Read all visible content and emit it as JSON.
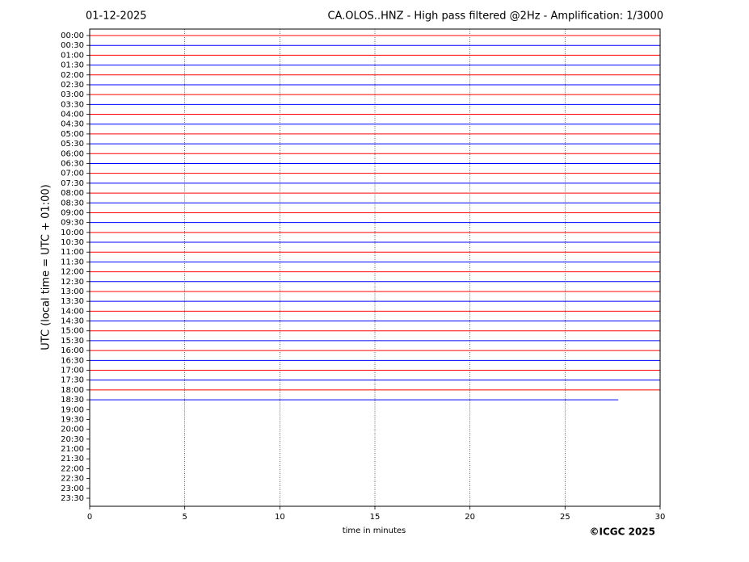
{
  "chart_data": {
    "type": "line",
    "subtitle": "01-12-2025",
    "title": "CA.OLOS..HNZ - High pass filtered @2Hz - Amplification: 1/3000",
    "x_label": "time in minutes",
    "y_label": "UTC (local time = UTC + 01:00)",
    "credit": "©ICGC 2025",
    "categories": [
      "00:00",
      "00:30",
      "01:00",
      "01:30",
      "02:00",
      "02:30",
      "03:00",
      "03:30",
      "04:00",
      "04:30",
      "05:00",
      "05:30",
      "06:00",
      "06:30",
      "07:00",
      "07:30",
      "08:00",
      "08:30",
      "09:00",
      "09:30",
      "10:00",
      "10:30",
      "11:00",
      "11:30",
      "12:00",
      "12:30",
      "13:00",
      "13:30",
      "14:00",
      "14:30",
      "15:00",
      "15:30",
      "16:00",
      "16:30",
      "17:00",
      "17:30",
      "18:00",
      "18:30",
      "19:00",
      "19:30",
      "20:00",
      "20:30",
      "21:00",
      "21:30",
      "22:00",
      "22:30",
      "23:00",
      "23:30"
    ],
    "xlim": [
      0,
      30
    ],
    "xticks": [
      0,
      5,
      10,
      15,
      20,
      25,
      30
    ],
    "grid": true,
    "traces": [
      {
        "color": "#ff0000",
        "start": 0,
        "end": 30
      },
      {
        "color": "#0000ff",
        "start": 0,
        "end": 30
      },
      {
        "color": "#ff0000",
        "start": 0,
        "end": 30
      },
      {
        "color": "#0000ff",
        "start": 0,
        "end": 30
      },
      {
        "color": "#ff0000",
        "start": 0,
        "end": 30
      },
      {
        "color": "#0000ff",
        "start": 0,
        "end": 30
      },
      {
        "color": "#ff0000",
        "start": 0,
        "end": 30
      },
      {
        "color": "#0000ff",
        "start": 0,
        "end": 30
      },
      {
        "color": "#ff0000",
        "start": 0,
        "end": 30
      },
      {
        "color": "#0000ff",
        "start": 0,
        "end": 30
      },
      {
        "color": "#ff0000",
        "start": 0,
        "end": 30
      },
      {
        "color": "#0000ff",
        "start": 0,
        "end": 30
      },
      {
        "color": "#ff0000",
        "start": 0,
        "end": 30
      },
      {
        "color": "#0000ff",
        "start": 0,
        "end": 30
      },
      {
        "color": "#ff0000",
        "start": 0,
        "end": 30
      },
      {
        "color": "#0000ff",
        "start": 0,
        "end": 30
      },
      {
        "color": "#ff0000",
        "start": 0,
        "end": 30
      },
      {
        "color": "#0000ff",
        "start": 0,
        "end": 30
      },
      {
        "color": "#ff0000",
        "start": 0,
        "end": 30
      },
      {
        "color": "#0000ff",
        "start": 0,
        "end": 30
      },
      {
        "color": "#ff0000",
        "start": 0,
        "end": 30
      },
      {
        "color": "#0000ff",
        "start": 0,
        "end": 30
      },
      {
        "color": "#ff0000",
        "start": 0,
        "end": 30
      },
      {
        "color": "#0000ff",
        "start": 0,
        "end": 30
      },
      {
        "color": "#ff0000",
        "start": 0,
        "end": 30
      },
      {
        "color": "#0000ff",
        "start": 0,
        "end": 30
      },
      {
        "color": "#ff0000",
        "start": 0,
        "end": 30
      },
      {
        "color": "#0000ff",
        "start": 0,
        "end": 30
      },
      {
        "color": "#ff0000",
        "start": 0,
        "end": 30
      },
      {
        "color": "#0000ff",
        "start": 0,
        "end": 30
      },
      {
        "color": "#ff0000",
        "start": 0,
        "end": 30
      },
      {
        "color": "#0000ff",
        "start": 0,
        "end": 30
      },
      {
        "color": "#ff0000",
        "start": 0,
        "end": 30
      },
      {
        "color": "#0000ff",
        "start": 0,
        "end": 30
      },
      {
        "color": "#ff0000",
        "start": 0,
        "end": 30
      },
      {
        "color": "#0000ff",
        "start": 0,
        "end": 30
      },
      {
        "color": "#ff0000",
        "start": 0,
        "end": 30
      },
      {
        "color": "#0000ff",
        "start": 0,
        "end": 27.8
      }
    ]
  }
}
